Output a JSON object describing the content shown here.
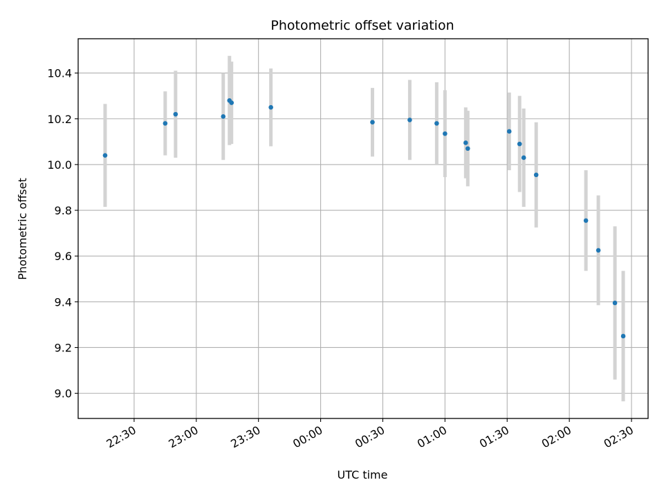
{
  "chart_data": {
    "type": "scatter",
    "title": "Photometric offset variation",
    "xlabel": "UTC time",
    "ylabel": "Photometric offset",
    "x_axis": "time",
    "xlim": [
      "22:03",
      "02:38"
    ],
    "ylim": [
      8.89,
      10.55
    ],
    "x_ticks": [
      "22:30",
      "23:00",
      "23:30",
      "00:00",
      "00:30",
      "01:00",
      "01:30",
      "02:00",
      "02:30"
    ],
    "y_ticks": [
      9.0,
      9.2,
      9.4,
      9.6,
      9.8,
      10.0,
      10.2,
      10.4
    ],
    "grid": true,
    "colors": {
      "point": "#1f77b4",
      "errorbar": "#d3d3d3",
      "grid": "#b0b0b0"
    },
    "points": [
      {
        "t": "22:16",
        "y": 10.04,
        "err": 0.225
      },
      {
        "t": "22:45",
        "y": 10.18,
        "err": 0.14
      },
      {
        "t": "22:50",
        "y": 10.22,
        "err": 0.19
      },
      {
        "t": "23:13",
        "y": 10.21,
        "err": 0.19
      },
      {
        "t": "23:16",
        "y": 10.28,
        "err": 0.195
      },
      {
        "t": "23:17",
        "y": 10.27,
        "err": 0.18
      },
      {
        "t": "23:36",
        "y": 10.25,
        "err": 0.17
      },
      {
        "t": "00:25",
        "y": 10.185,
        "err": 0.15
      },
      {
        "t": "00:43",
        "y": 10.195,
        "err": 0.175
      },
      {
        "t": "00:56",
        "y": 10.18,
        "err": 0.18
      },
      {
        "t": "01:00",
        "y": 10.135,
        "err": 0.19
      },
      {
        "t": "01:10",
        "y": 10.095,
        "err": 0.155
      },
      {
        "t": "01:11",
        "y": 10.07,
        "err": 0.165
      },
      {
        "t": "01:31",
        "y": 10.145,
        "err": 0.17
      },
      {
        "t": "01:36",
        "y": 10.09,
        "err": 0.21
      },
      {
        "t": "01:38",
        "y": 10.03,
        "err": 0.215
      },
      {
        "t": "01:44",
        "y": 9.955,
        "err": 0.23
      },
      {
        "t": "02:08",
        "y": 9.755,
        "err": 0.22
      },
      {
        "t": "02:14",
        "y": 9.625,
        "err": 0.24
      },
      {
        "t": "02:22",
        "y": 9.395,
        "err": 0.335
      },
      {
        "t": "02:26",
        "y": 9.25,
        "err": 0.285
      }
    ]
  }
}
